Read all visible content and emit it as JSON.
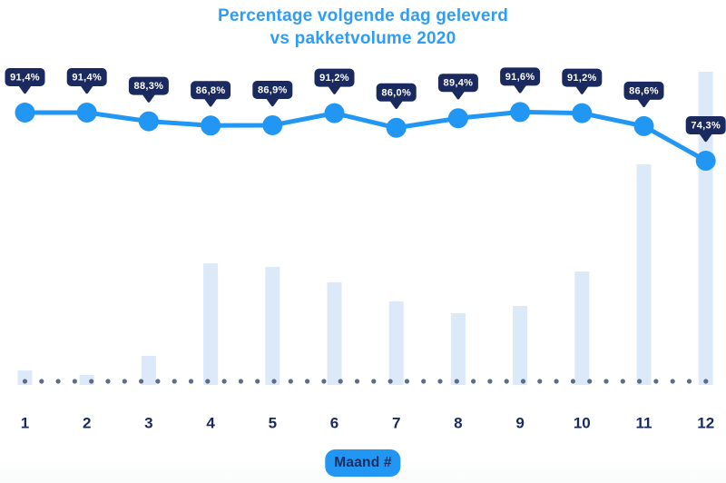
{
  "title": {
    "line1": "Percentage volgende dag geleverd",
    "line2": "vs pakketvolume 2020"
  },
  "x_axis": {
    "button_label": "Maand #"
  },
  "colors": {
    "accent_blue": "#2196f3",
    "navy": "#1b2a5e",
    "bar_fill": "#dbe9f8",
    "dot_gray": "#5c6c89",
    "badge_text": "#ffffff",
    "background": "#ffffff"
  },
  "chart_data": {
    "type": "line+bar",
    "title": "Percentage volgende dag geleverd vs pakketvolume 2020",
    "categories": [
      "1",
      "2",
      "3",
      "4",
      "5",
      "6",
      "7",
      "8",
      "9",
      "10",
      "11",
      "12"
    ],
    "series": [
      {
        "name": "percentage-volgende-dag-geleverd",
        "type": "line",
        "values": [
          91.4,
          91.4,
          88.3,
          86.8,
          86.9,
          91.2,
          86.0,
          89.4,
          91.6,
          91.2,
          86.6,
          74.3
        ],
        "labels": [
          "91,4%",
          "91,4%",
          "88,3%",
          "86,8%",
          "86,9%",
          "91,2%",
          "86,0%",
          "89,4%",
          "91,6%",
          "91,2%",
          "86,6%",
          "74,3%"
        ]
      },
      {
        "name": "pakketvolume",
        "type": "bar",
        "unit": "relative-0-100",
        "values": [
          4.6,
          3.2,
          9.3,
          38.8,
          37.7,
          32.8,
          26.7,
          22.9,
          25.2,
          36.2,
          70.4,
          100
        ]
      }
    ],
    "x_axis_label": "Maand #",
    "ylim_line": [
      74.3,
      91.6
    ],
    "legend": "none",
    "grid": "dotted-baseline"
  }
}
